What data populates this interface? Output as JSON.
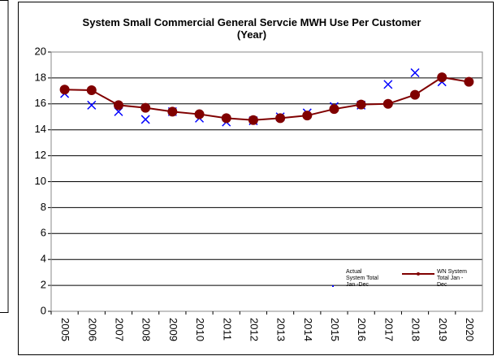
{
  "chart_data": {
    "type": "line",
    "title": "System Small  Commercial General Servcie MWH Use Per Customer (Year)",
    "categories": [
      "2005",
      "2006",
      "2007",
      "2008",
      "2009",
      "2010",
      "2011",
      "2012",
      "2013",
      "2014",
      "2015",
      "2016",
      "2017",
      "2018",
      "2019",
      "2020"
    ],
    "series": [
      {
        "name": "Actual System Total Jan -Dec",
        "color": "#0000ff",
        "marker": "x",
        "values": [
          16.8,
          15.9,
          15.4,
          14.8,
          15.4,
          14.9,
          14.6,
          14.7,
          15.0,
          15.3,
          15.8,
          15.9,
          17.5,
          18.4,
          17.7,
          null
        ]
      },
      {
        "name": "WN System Total Jan -Dec",
        "color": "#800000",
        "marker": "circle",
        "values": [
          17.1,
          17.05,
          15.9,
          15.7,
          15.4,
          15.2,
          14.9,
          14.75,
          14.9,
          15.1,
          15.6,
          15.95,
          16.0,
          16.7,
          18.05,
          17.7
        ]
      }
    ],
    "ylim": [
      0,
      20
    ],
    "yticks": [
      0,
      2,
      4,
      6,
      8,
      10,
      12,
      14,
      16,
      18,
      20
    ],
    "grid": true,
    "legend": "lower right"
  }
}
